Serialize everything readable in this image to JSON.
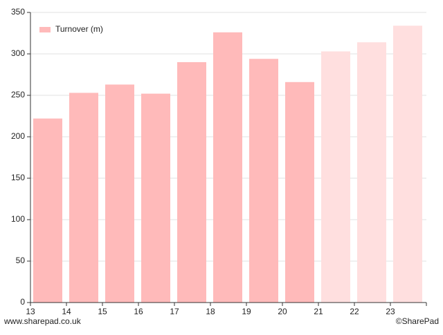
{
  "chart_data": {
    "type": "bar",
    "categories": [
      "13",
      "14",
      "15",
      "16",
      "17",
      "18",
      "19",
      "20",
      "21",
      "22",
      "23"
    ],
    "series": [
      {
        "name": "Turnover (m)",
        "color": "#ffbaba",
        "colors": [
          "#ffbaba",
          "#ffbaba",
          "#ffbaba",
          "#ffbaba",
          "#ffbaba",
          "#ffbaba",
          "#ffbaba",
          "#ffbaba",
          "#ffdfdf",
          "#ffdfdf",
          "#ffdfdf"
        ],
        "values": [
          222,
          253,
          263,
          252,
          290,
          326,
          294,
          266,
          303,
          314,
          334
        ]
      }
    ],
    "ylim": [
      0,
      350
    ],
    "yticks": [
      0,
      50,
      100,
      150,
      200,
      250,
      300,
      350
    ],
    "grid": true,
    "legend": "top-left",
    "footer_left": "www.sharepad.co.uk",
    "footer_right": "©SharePad"
  }
}
